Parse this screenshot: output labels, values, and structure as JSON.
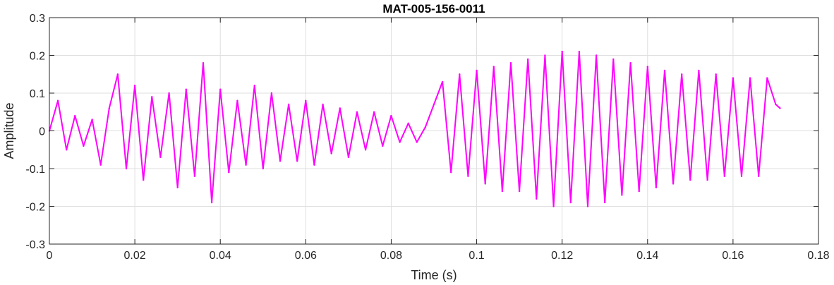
{
  "colors": {
    "series": "#ff00ff",
    "grid": "#dfdfdf",
    "axis": "#262626",
    "background": "#ffffff"
  },
  "chart_data": {
    "type": "line",
    "title": "MAT-005-156-0011",
    "xlabel": "Time (s)",
    "ylabel": "Amplitude",
    "xlim": [
      0,
      0.18
    ],
    "ylim": [
      -0.3,
      0.3
    ],
    "grid": true,
    "xticks": [
      0,
      0.02,
      0.04,
      0.06,
      0.08,
      0.1,
      0.12,
      0.14,
      0.16,
      0.18
    ],
    "xtick_labels": [
      "0",
      "0.02",
      "0.04",
      "0.06",
      "0.08",
      "0.1",
      "0.12",
      "0.14",
      "0.16",
      "0.18"
    ],
    "yticks": [
      -0.3,
      -0.2,
      -0.1,
      0,
      0.1,
      0.2,
      0.3
    ],
    "ytick_labels": [
      "-0.3",
      "-0.2",
      "-0.1",
      "0",
      "0.1",
      "0.2",
      "0.3"
    ],
    "series": [
      {
        "color": "#ff00ff",
        "x": [
          0,
          0.002,
          0.004,
          0.006,
          0.008,
          0.01,
          0.012,
          0.014,
          0.016,
          0.018,
          0.02,
          0.022,
          0.024,
          0.026,
          0.028,
          0.03,
          0.032,
          0.034,
          0.036,
          0.038,
          0.04,
          0.042,
          0.044,
          0.046,
          0.048,
          0.05,
          0.052,
          0.054,
          0.056,
          0.058,
          0.06,
          0.062,
          0.064,
          0.066,
          0.068,
          0.07,
          0.072,
          0.074,
          0.076,
          0.078,
          0.08,
          0.082,
          0.084,
          0.086,
          0.088,
          0.09,
          0.092,
          0.094,
          0.096,
          0.098,
          0.1,
          0.102,
          0.104,
          0.106,
          0.108,
          0.11,
          0.112,
          0.114,
          0.116,
          0.118,
          0.12,
          0.122,
          0.124,
          0.126,
          0.128,
          0.13,
          0.132,
          0.134,
          0.136,
          0.138,
          0.14,
          0.142,
          0.144,
          0.146,
          0.148,
          0.15,
          0.152,
          0.154,
          0.156,
          0.158,
          0.16,
          0.162,
          0.164,
          0.166,
          0.168,
          0.17,
          0.171
        ],
        "y": [
          0.0,
          0.08,
          -0.05,
          0.04,
          -0.04,
          0.03,
          -0.09,
          0.06,
          0.15,
          -0.1,
          0.12,
          -0.13,
          0.09,
          -0.07,
          0.1,
          -0.15,
          0.11,
          -0.12,
          0.18,
          -0.19,
          0.11,
          -0.11,
          0.08,
          -0.09,
          0.12,
          -0.1,
          0.1,
          -0.08,
          0.07,
          -0.08,
          0.08,
          -0.09,
          0.07,
          -0.06,
          0.06,
          -0.07,
          0.05,
          -0.05,
          0.05,
          -0.04,
          0.04,
          -0.03,
          0.02,
          -0.03,
          0.01,
          0.07,
          0.13,
          -0.11,
          0.15,
          -0.12,
          0.16,
          -0.14,
          0.17,
          -0.16,
          0.18,
          -0.16,
          0.19,
          -0.18,
          0.2,
          -0.2,
          0.21,
          -0.19,
          0.21,
          -0.2,
          0.2,
          -0.19,
          0.19,
          -0.17,
          0.18,
          -0.16,
          0.17,
          -0.15,
          0.16,
          -0.14,
          0.15,
          -0.13,
          0.16,
          -0.13,
          0.15,
          -0.12,
          0.14,
          -0.12,
          0.14,
          -0.12,
          0.14,
          0.07,
          0.06
        ]
      }
    ]
  }
}
